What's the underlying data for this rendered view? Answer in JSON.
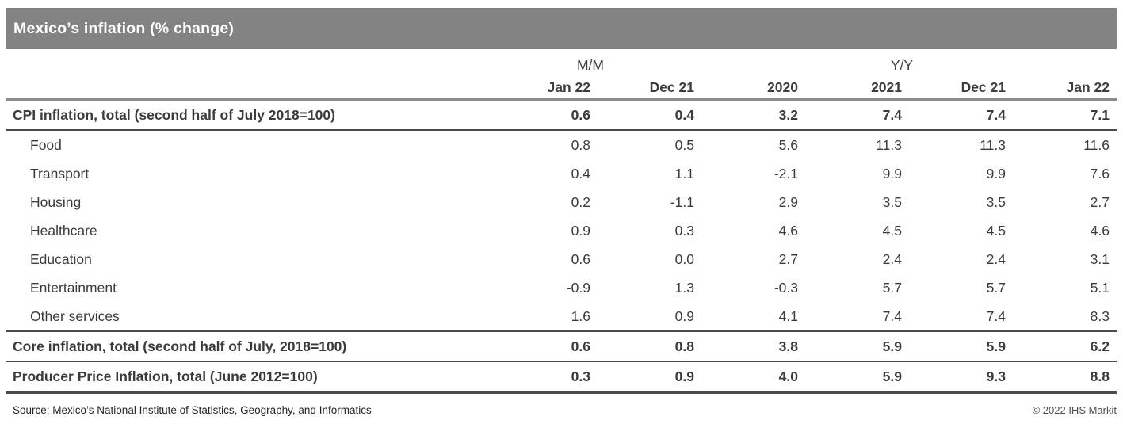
{
  "chart_data": {
    "type": "table",
    "title": "Mexico’s inflation (% change)",
    "group_headers": [
      {
        "label": "M/M",
        "span": 2
      },
      {
        "label": "Y/Y",
        "span": 4
      }
    ],
    "columns": [
      "Jan 22",
      "Dec 21",
      "2020",
      "2021",
      "Dec 21",
      "Jan 22"
    ],
    "rows": [
      {
        "label": "CPI inflation, total (second half of July 2018=100)",
        "bold": true,
        "indent": false,
        "rule_bottom": true,
        "values": [
          "0.6",
          "0.4",
          "3.2",
          "7.4",
          "7.4",
          "7.1"
        ]
      },
      {
        "label": "Food",
        "bold": false,
        "indent": true,
        "values": [
          "0.8",
          "0.5",
          "5.6",
          "11.3",
          "11.3",
          "11.6"
        ]
      },
      {
        "label": "Transport",
        "bold": false,
        "indent": true,
        "values": [
          "0.4",
          "1.1",
          "-2.1",
          "9.9",
          "9.9",
          "7.6"
        ]
      },
      {
        "label": "Housing",
        "bold": false,
        "indent": true,
        "values": [
          "0.2",
          "-1.1",
          "2.9",
          "3.5",
          "3.5",
          "2.7"
        ]
      },
      {
        "label": "Healthcare",
        "bold": false,
        "indent": true,
        "values": [
          "0.9",
          "0.3",
          "4.6",
          "4.5",
          "4.5",
          "4.6"
        ]
      },
      {
        "label": "Education",
        "bold": false,
        "indent": true,
        "values": [
          "0.6",
          "0.0",
          "2.7",
          "2.4",
          "2.4",
          "3.1"
        ]
      },
      {
        "label": "Entertainment",
        "bold": false,
        "indent": true,
        "values": [
          "-0.9",
          "1.3",
          "-0.3",
          "5.7",
          "5.7",
          "5.1"
        ]
      },
      {
        "label": "Other services",
        "bold": false,
        "indent": true,
        "values": [
          "1.6",
          "0.9",
          "4.1",
          "7.4",
          "7.4",
          "8.3"
        ]
      },
      {
        "label": "Core inflation, total (second half of July, 2018=100)",
        "bold": true,
        "indent": false,
        "rule_top": true,
        "values": [
          "0.6",
          "0.8",
          "3.8",
          "5.9",
          "5.9",
          "6.2"
        ]
      },
      {
        "label": "Producer Price Inflation, total (June 2012=100)",
        "bold": true,
        "indent": false,
        "rule_top": true,
        "values": [
          "0.3",
          "0.9",
          "4.0",
          "5.9",
          "9.3",
          "8.8"
        ]
      }
    ]
  },
  "footer": {
    "source": "Source: Mexico’s National Institute of Statistics, Geography, and Informatics",
    "copyright": "© 2022 IHS Markit"
  },
  "colors": {
    "title_bar_bg": "#838383",
    "title_text": "#ffffff",
    "table_text": "#3b3b3b",
    "header_rule": "#8c8c8c",
    "section_rule": "#4b4b4b"
  }
}
